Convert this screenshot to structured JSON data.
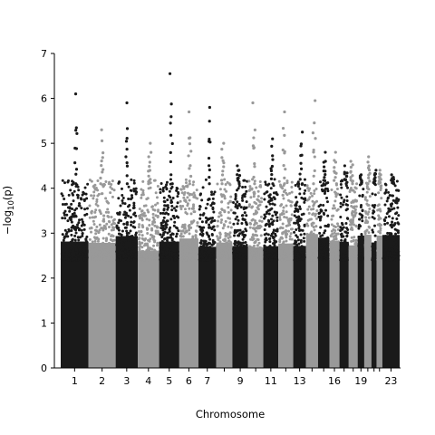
{
  "chart_data": {
    "type": "scatter",
    "subtype": "manhattan",
    "title": "",
    "xlabel": "Chromosome",
    "ylabel": "-log10(p)",
    "ylim": [
      0,
      7
    ],
    "y_ticks": [
      0,
      1,
      2,
      3,
      4,
      5,
      6,
      7
    ],
    "grid": false,
    "colors": {
      "odd": "#1a1a1a",
      "even": "#999999"
    },
    "chromosomes": [
      {
        "chrom": "1",
        "label": "1",
        "length": 249,
        "max": 6.1
      },
      {
        "chrom": "2",
        "label": "2",
        "length": 243,
        "max": 5.3
      },
      {
        "chrom": "3",
        "label": "3",
        "length": 198,
        "max": 5.9
      },
      {
        "chrom": "4",
        "label": "4",
        "length": 191,
        "max": 5.0
      },
      {
        "chrom": "5",
        "label": "5",
        "length": 181,
        "max": 6.55
      },
      {
        "chrom": "6",
        "label": "6",
        "length": 171,
        "max": 5.7
      },
      {
        "chrom": "7",
        "label": "7",
        "length": 159,
        "max": 5.8
      },
      {
        "chrom": "8",
        "label": "",
        "length": 145,
        "max": 5.0
      },
      {
        "chrom": "9",
        "label": "9",
        "length": 141,
        "max": 4.5
      },
      {
        "chrom": "10",
        "label": "",
        "length": 136,
        "max": 5.9
      },
      {
        "chrom": "11",
        "label": "11",
        "length": 135,
        "max": 5.1
      },
      {
        "chrom": "12",
        "label": "",
        "length": 133,
        "max": 5.7
      },
      {
        "chrom": "13",
        "label": "13",
        "length": 115,
        "max": 5.25
      },
      {
        "chrom": "14",
        "label": "",
        "length": 107,
        "max": 5.95
      },
      {
        "chrom": "15",
        "label": "",
        "length": 102,
        "max": 4.8
      },
      {
        "chrom": "16",
        "label": "16",
        "length": 90,
        "max": 4.8
      },
      {
        "chrom": "17",
        "label": "",
        "length": 83,
        "max": 4.5
      },
      {
        "chrom": "18",
        "label": "",
        "length": 80,
        "max": 4.6
      },
      {
        "chrom": "19",
        "label": "19",
        "length": 59,
        "max": 4.3
      },
      {
        "chrom": "20",
        "label": "",
        "length": 64,
        "max": 4.7
      },
      {
        "chrom": "21",
        "label": "",
        "length": 47,
        "max": 4.4
      },
      {
        "chrom": "22",
        "label": "",
        "length": 51,
        "max": 4.4
      },
      {
        "chrom": "23",
        "label": "23",
        "length": 155,
        "max": 4.3
      }
    ]
  }
}
